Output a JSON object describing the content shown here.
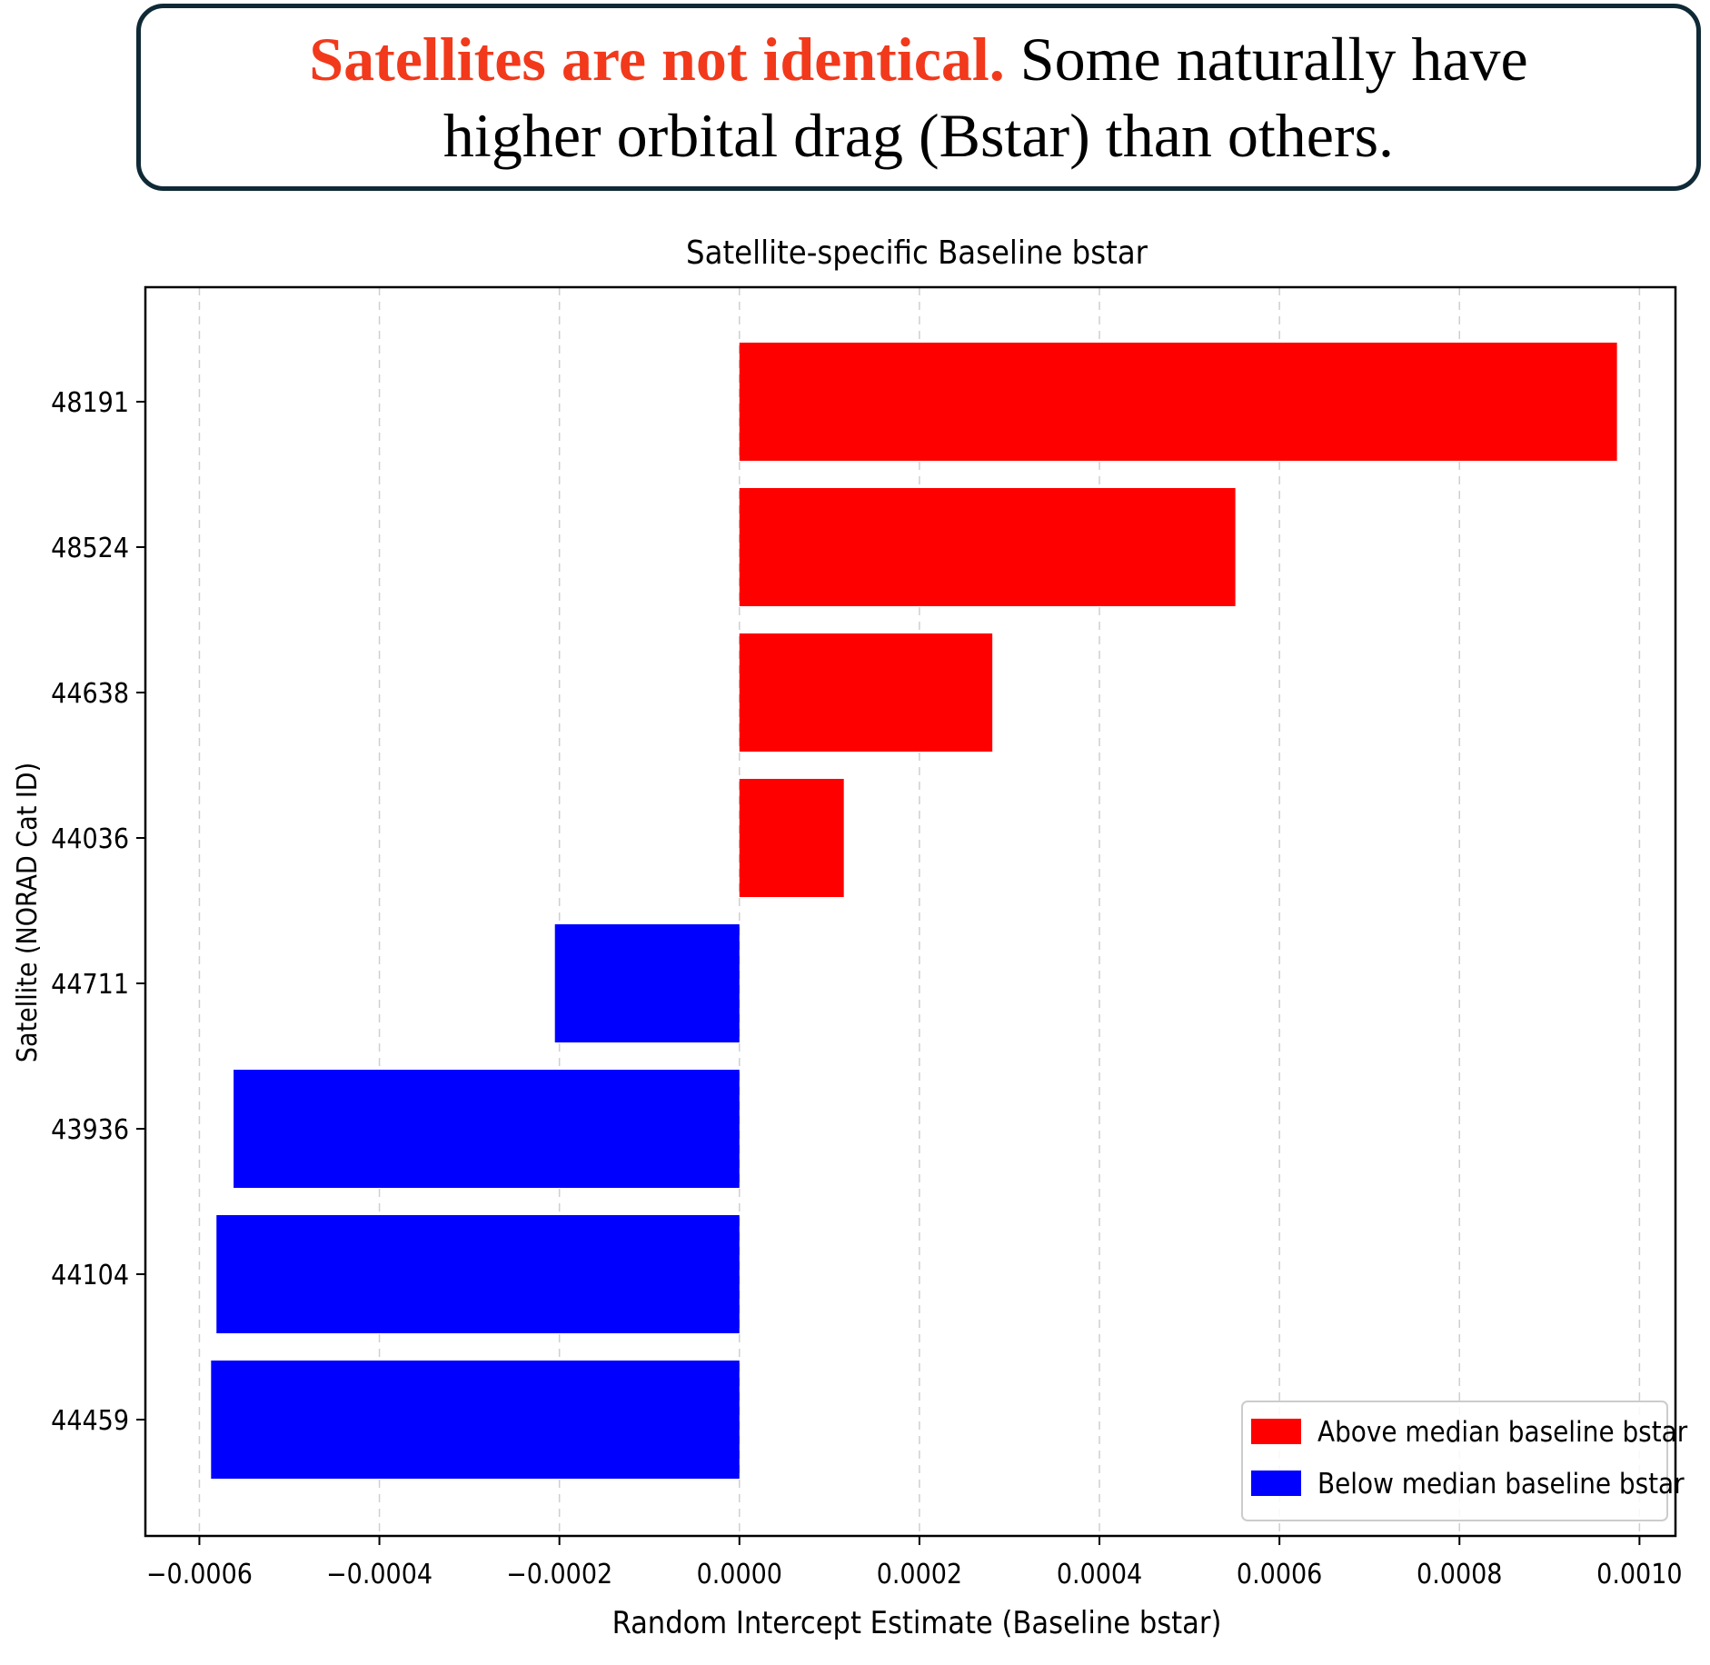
{
  "callout": {
    "highlight": "Satellites are not identical.",
    "line1_rest": " Some naturally have",
    "line2": "higher orbital drag (Bstar) than others.",
    "highlight_color": "#f2391b"
  },
  "chart_data": {
    "type": "bar",
    "orientation": "horizontal",
    "title": "Satellite-specific Baseline bstar",
    "xlabel": "Random Intercept Estimate (Baseline bstar)",
    "ylabel": "Satellite (NORAD Cat ID)",
    "xlim": [
      -0.00066,
      0.00104
    ],
    "xticks": [
      -0.0006,
      -0.0004,
      -0.0002,
      0.0,
      0.0002,
      0.0004,
      0.0006,
      0.0008,
      0.001
    ],
    "xtick_labels": [
      "−0.0006",
      "−0.0004",
      "−0.0002",
      "0.0000",
      "0.0002",
      "0.0004",
      "0.0006",
      "0.0008",
      "0.0010"
    ],
    "grid": "x-dashed",
    "legend_position": "bottom-right",
    "categories": [
      "48191",
      "48524",
      "44638",
      "44036",
      "44711",
      "43936",
      "44104",
      "44459"
    ],
    "values": [
      0.000975,
      0.000551,
      0.000281,
      0.000116,
      -0.000205,
      -0.000562,
      -0.000581,
      -0.000587
    ],
    "groups": [
      "above",
      "above",
      "above",
      "above",
      "below",
      "below",
      "below",
      "below"
    ],
    "legend": [
      {
        "key": "above",
        "label": "Above median baseline bstar",
        "color": "#ff0000"
      },
      {
        "key": "below",
        "label": "Below median baseline bstar",
        "color": "#0000ff"
      }
    ]
  }
}
